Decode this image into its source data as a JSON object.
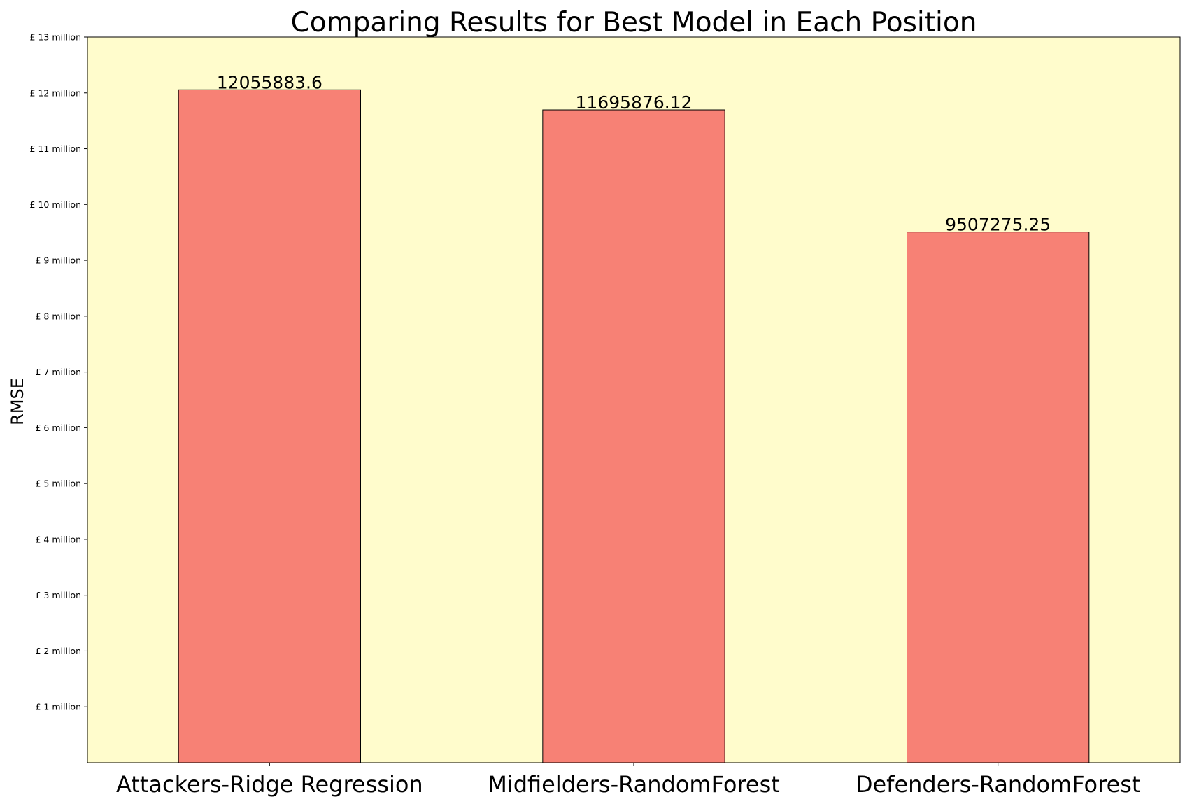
{
  "chart_data": {
    "type": "bar",
    "title": "Comparing Results for Best Model in Each Position",
    "xlabel": "",
    "ylabel": "RMSE",
    "categories": [
      "Attackers-Ridge Regression",
      "Midfielders-RandomForest",
      "Defenders-RandomForest"
    ],
    "values": [
      12055883.6,
      11695876.12,
      9507275.25
    ],
    "data_labels": [
      "12055883.6",
      "11695876.12",
      "9507275.25"
    ],
    "ylim": [
      0,
      13000000
    ],
    "yticks": [
      1000000,
      2000000,
      3000000,
      4000000,
      5000000,
      6000000,
      7000000,
      8000000,
      9000000,
      10000000,
      11000000,
      12000000,
      13000000
    ],
    "ytick_labels": [
      "£ 1 million",
      "£ 2 million",
      "£ 3 million",
      "£ 4 million",
      "£ 5 million",
      "£ 6 million",
      "£ 7 million",
      "£ 8 million",
      "£ 9 million",
      "£ 10 million",
      "£ 11 million",
      "£ 12 million",
      "£ 13 million"
    ],
    "grid": false,
    "legend": "none",
    "colors": {
      "bar_fill": "#f78175",
      "bar_edge": "#000000",
      "plot_background": "#fffccc",
      "figure_background": "#ffffff"
    }
  }
}
